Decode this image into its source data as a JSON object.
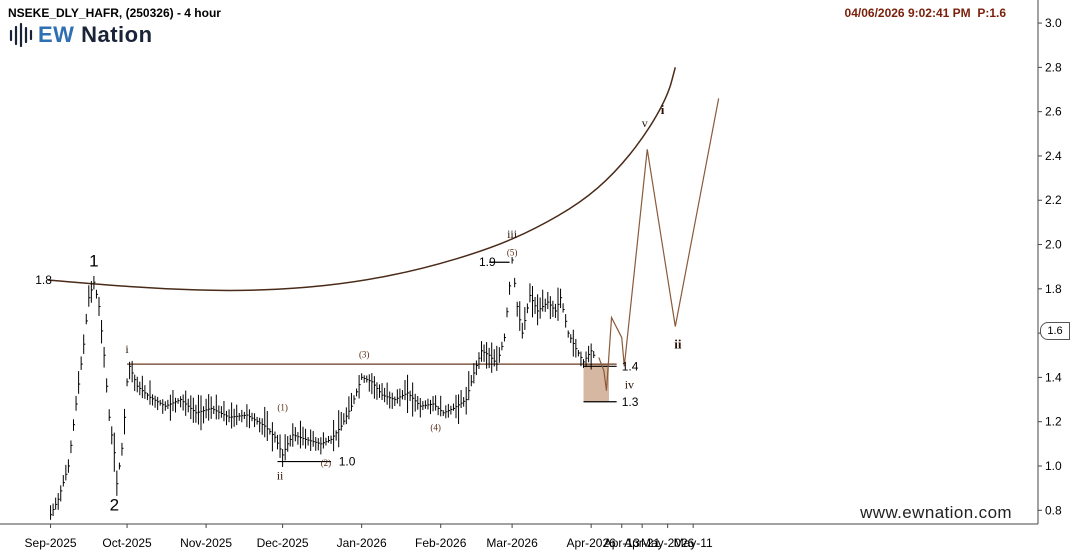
{
  "header": {
    "symbol": "NSEKE_DLY_HAFR, (250326) - 4 hour",
    "datetime": "04/06/2026 9:02:41 PM",
    "precision": "P:1.6"
  },
  "brand": {
    "logo_prefix": "EW",
    "logo_suffix": " Nation",
    "watermark": "www.ewnation.com"
  },
  "chart_data": {
    "type": "line",
    "x_axis": {
      "tick_labels": [
        "Sep-2025",
        "Oct-2025",
        "Nov-2025",
        "Dec-2025",
        "Jan-2026",
        "Feb-2026",
        "Mar-2026",
        "Apr-2026",
        "Apr-13",
        "Apr-21",
        "May-2026",
        "May-11"
      ]
    },
    "y_axis": {
      "range": [
        0.7,
        3.05
      ],
      "ticks": [
        0.8,
        1.0,
        1.2,
        1.4,
        1.6,
        1.8,
        2.0,
        2.2,
        2.4,
        2.6,
        2.8,
        3.0
      ],
      "tick_labels": [
        "0.8",
        "1.0",
        "1.2",
        "1.4",
        "1.6",
        "1.8",
        "2.0",
        "2.2",
        "2.4",
        "2.6",
        "2.8",
        "3.0"
      ],
      "position": "right"
    },
    "current_price": {
      "value": 1.6,
      "label": "1.6"
    },
    "price_series": {
      "name": "",
      "points": [
        [
          "2025-09-01",
          0.78
        ],
        [
          "2025-09-04",
          0.85
        ],
        [
          "2025-09-08",
          1.0
        ],
        [
          "2025-09-11",
          1.28
        ],
        [
          "2025-09-14",
          1.55
        ],
        [
          "2025-09-16",
          1.76
        ],
        [
          "2025-09-18",
          1.83
        ],
        [
          "2025-09-20",
          1.72
        ],
        [
          "2025-09-22",
          1.5
        ],
        [
          "2025-09-24",
          1.22
        ],
        [
          "2025-09-26",
          1.06
        ],
        [
          "2025-09-27",
          0.92
        ],
        [
          "2025-09-29",
          1.08
        ],
        [
          "2025-09-30",
          1.22
        ],
        [
          "2025-10-01",
          1.38
        ],
        [
          "2025-10-02",
          1.45
        ],
        [
          "2025-10-05",
          1.36
        ],
        [
          "2025-10-10",
          1.31
        ],
        [
          "2025-10-16",
          1.27
        ],
        [
          "2025-10-22",
          1.3
        ],
        [
          "2025-10-28",
          1.24
        ],
        [
          "2025-11-03",
          1.26
        ],
        [
          "2025-11-10",
          1.22
        ],
        [
          "2025-11-17",
          1.23
        ],
        [
          "2025-11-24",
          1.18
        ],
        [
          "2025-11-28",
          1.13
        ],
        [
          "2025-12-01",
          1.05
        ],
        [
          "2025-12-03",
          1.1
        ],
        [
          "2025-12-05",
          1.14
        ],
        [
          "2025-12-10",
          1.12
        ],
        [
          "2025-12-16",
          1.1
        ],
        [
          "2025-12-20",
          1.12
        ],
        [
          "2025-12-24",
          1.18
        ],
        [
          "2025-12-28",
          1.27
        ],
        [
          "2026-01-01",
          1.4
        ],
        [
          "2026-01-05",
          1.38
        ],
        [
          "2026-01-09",
          1.32
        ],
        [
          "2026-01-14",
          1.3
        ],
        [
          "2026-01-19",
          1.33
        ],
        [
          "2026-01-24",
          1.27
        ],
        [
          "2026-01-29",
          1.28
        ],
        [
          "2026-02-02",
          1.24
        ],
        [
          "2026-02-06",
          1.26
        ],
        [
          "2026-02-11",
          1.3
        ],
        [
          "2026-02-14",
          1.42
        ],
        [
          "2026-02-17",
          1.52
        ],
        [
          "2026-02-20",
          1.5
        ],
        [
          "2026-02-23",
          1.46
        ],
        [
          "2026-02-26",
          1.58
        ],
        [
          "2026-03-01",
          1.93
        ],
        [
          "2026-03-03",
          1.72
        ],
        [
          "2026-03-05",
          1.6
        ],
        [
          "2026-03-08",
          1.77
        ],
        [
          "2026-03-11",
          1.7
        ],
        [
          "2026-03-15",
          1.74
        ],
        [
          "2026-03-18",
          1.7
        ],
        [
          "2026-03-20",
          1.76
        ],
        [
          "2026-03-23",
          1.6
        ],
        [
          "2026-03-26",
          1.53
        ],
        [
          "2026-03-29",
          1.47
        ],
        [
          "2026-04-01",
          1.52
        ],
        [
          "2026-04-03",
          1.48
        ]
      ]
    },
    "projection_path": {
      "points": [
        [
          "2026-04-04",
          1.49
        ],
        [
          "2026-04-06",
          1.43
        ],
        [
          "2026-04-07",
          1.34
        ],
        [
          "2026-04-09",
          1.67
        ],
        [
          "2026-04-13",
          1.58
        ],
        [
          "2026-04-14",
          1.45
        ],
        [
          "2026-04-23",
          2.43
        ],
        [
          "2026-05-04",
          1.63
        ],
        [
          "2026-05-21",
          2.66
        ]
      ]
    },
    "arc_trendline": {
      "points": [
        [
          "2025-08-31",
          1.84
        ],
        [
          "2025-09-20",
          1.82
        ],
        [
          "2025-10-15",
          1.8
        ],
        [
          "2025-11-10",
          1.79
        ],
        [
          "2025-12-05",
          1.8
        ],
        [
          "2025-12-30",
          1.83
        ],
        [
          "2026-01-25",
          1.89
        ],
        [
          "2026-02-20",
          1.98
        ],
        [
          "2026-03-10",
          2.07
        ],
        [
          "2026-03-28",
          2.19
        ],
        [
          "2026-04-10",
          2.32
        ],
        [
          "2026-04-22",
          2.49
        ],
        [
          "2026-05-01",
          2.67
        ],
        [
          "2026-05-04",
          2.8
        ]
      ]
    },
    "horizontal_lines": [
      {
        "value": 1.46,
        "from": "2025-10-01",
        "to": "2026-04-11"
      },
      {
        "value": 1.02,
        "from": "2025-11-29",
        "to": "2025-12-20"
      },
      {
        "value": 1.92,
        "from": "2026-02-20",
        "to": "2026-02-28"
      },
      {
        "value": 1.45,
        "from": "2026-03-29",
        "to": "2026-04-11"
      },
      {
        "value": 1.29,
        "from": "2026-03-29",
        "to": "2026-04-11"
      }
    ],
    "zone": {
      "from": "2026-03-29",
      "to": "2026-04-08",
      "low": 1.29,
      "high": 1.46,
      "color": "#d6b8a2"
    },
    "level_labels": [
      {
        "text": "1.8",
        "x": "2025-08-26",
        "y": 1.84
      },
      {
        "text": "1.0",
        "x": "2025-12-23",
        "y": 1.02
      },
      {
        "text": "1.9",
        "x": "2026-02-16",
        "y": 1.92
      },
      {
        "text": "1.4",
        "x": "2026-04-13",
        "y": 1.45
      },
      {
        "text": "1.3",
        "x": "2026-04-13",
        "y": 1.29
      }
    ],
    "wave_labels": [
      {
        "text": "1",
        "x": "2025-09-18",
        "y": 1.9,
        "size": "large"
      },
      {
        "text": "2",
        "x": "2025-09-26",
        "y": 0.8,
        "size": "large"
      },
      {
        "text": "i",
        "x": "2025-10-01",
        "y": 1.51,
        "size": "medium"
      },
      {
        "text": "ii",
        "x": "2025-11-30",
        "y": 0.94,
        "size": "medium"
      },
      {
        "text": "iii",
        "x": "2026-03-01",
        "y": 2.03,
        "size": "medium"
      },
      {
        "text": "iv",
        "x": "2026-04-16",
        "y": 1.35,
        "size": "medium"
      },
      {
        "text": "v",
        "x": "2026-04-22",
        "y": 2.53,
        "size": "medium"
      },
      {
        "text": "i",
        "x": "2026-04-29",
        "y": 2.59,
        "size": "medium-bold"
      },
      {
        "text": "ii",
        "x": "2026-05-05",
        "y": 1.53,
        "size": "medium-bold"
      },
      {
        "text": "(1)",
        "x": "2025-12-01",
        "y": 1.25,
        "size": "small"
      },
      {
        "text": "(2)",
        "x": "2025-12-18",
        "y": 1.0,
        "size": "small"
      },
      {
        "text": "(3)",
        "x": "2026-01-02",
        "y": 1.49,
        "size": "small"
      },
      {
        "text": "(4)",
        "x": "2026-01-30",
        "y": 1.16,
        "size": "small"
      },
      {
        "text": "(5)",
        "x": "2026-03-01",
        "y": 1.95,
        "size": "small"
      }
    ],
    "colors": {
      "price": "#000000",
      "trendline": "#4a2a18",
      "projection": "#8a5a3a",
      "zone": "#d6b8a2",
      "hline": "#000000",
      "axis": "#444444"
    },
    "grid": false
  }
}
